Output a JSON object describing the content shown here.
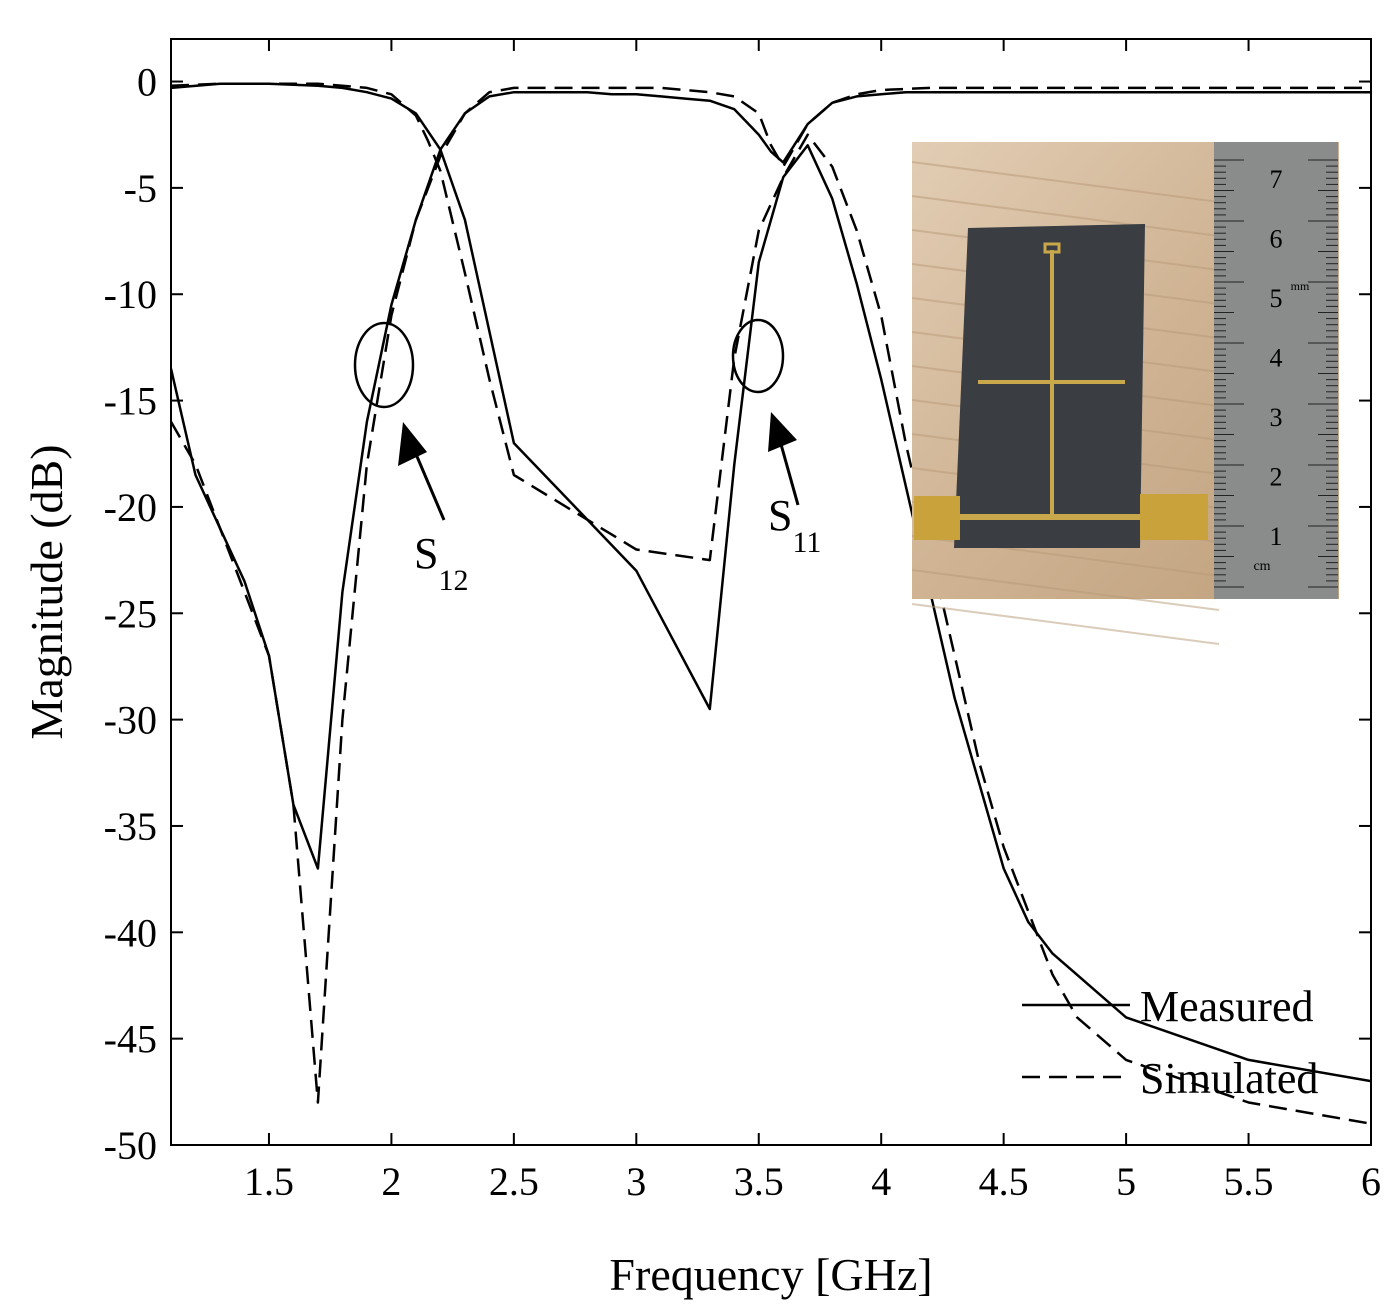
{
  "chart_data": {
    "type": "line",
    "title": "",
    "xlabel": "Frequency [GHz]",
    "ylabel": "Magnitude (dB)",
    "xlim": [
      1.1,
      6
    ],
    "ylim": [
      -50,
      2
    ],
    "xticks": [
      1.5,
      2,
      2.5,
      3,
      3.5,
      4,
      4.5,
      5,
      5.5,
      6
    ],
    "xtick_labels": [
      "1.5",
      "2",
      "2.5",
      "3",
      "3.5",
      "4",
      "4.5",
      "5",
      "5.5",
      "6"
    ],
    "yticks": [
      0,
      -5,
      -10,
      -15,
      -20,
      -25,
      -30,
      -35,
      -40,
      -45,
      -50
    ],
    "ytick_labels": [
      "0",
      "-5",
      "-10",
      "-15",
      "-20",
      "-25",
      "-30",
      "-35",
      "-40",
      "-45",
      "-50"
    ],
    "grid": false,
    "legend_position": "bottom-right",
    "legend": [
      {
        "label": "Measured",
        "style": "solid"
      },
      {
        "label": "Simulated",
        "style": "dashed"
      }
    ],
    "annotations": [
      {
        "text": "S",
        "subscript": "12"
      },
      {
        "text": "S",
        "subscript": "11"
      }
    ],
    "series": [
      {
        "parameter": "S12",
        "source": "Measured",
        "style": "solid",
        "x": [
          1.1,
          1.3,
          1.5,
          1.7,
          1.8,
          1.9,
          2.0,
          2.1,
          2.2,
          2.3,
          2.5,
          3.0,
          3.3,
          3.4,
          3.5,
          3.6,
          3.7,
          3.8,
          3.9,
          4.0,
          4.1,
          4.2,
          4.3,
          4.4,
          4.5,
          4.6,
          4.7,
          4.8,
          5.0,
          5.5,
          6.0
        ],
        "y": [
          -0.3,
          -0.1,
          -0.1,
          -0.2,
          -0.3,
          -0.5,
          -0.8,
          -1.5,
          -3.2,
          -6.5,
          -17,
          -23,
          -29.5,
          -18,
          -8.5,
          -4.5,
          -3.0,
          -5.5,
          -9.5,
          -14,
          -19,
          -24,
          -29,
          -33,
          -37,
          -39.5,
          -41,
          -42,
          -44,
          -46,
          -47
        ]
      },
      {
        "parameter": "S12",
        "source": "Simulated",
        "style": "dashed",
        "x": [
          1.1,
          1.3,
          1.5,
          1.7,
          1.8,
          1.9,
          2.0,
          2.1,
          2.15,
          2.2,
          2.3,
          2.4,
          2.5,
          3.0,
          3.3,
          3.4,
          3.5,
          3.6,
          3.7,
          3.8,
          3.9,
          4.0,
          4.1,
          4.2,
          4.3,
          4.4,
          4.5,
          4.6,
          4.7,
          4.8,
          5.0,
          5.5,
          6.0
        ],
        "y": [
          -0.2,
          -0.1,
          -0.1,
          -0.1,
          -0.2,
          -0.3,
          -0.6,
          -1.6,
          -2.8,
          -4.2,
          -9.0,
          -14,
          -18.5,
          -22,
          -22.5,
          -13,
          -7.0,
          -4.5,
          -2.5,
          -4.0,
          -7.0,
          -11,
          -17,
          -22,
          -27,
          -32,
          -36,
          -39,
          -42,
          -44,
          -46,
          -48,
          -49
        ]
      },
      {
        "parameter": "S11",
        "source": "Measured",
        "style": "solid",
        "x": [
          1.1,
          1.2,
          1.3,
          1.4,
          1.5,
          1.6,
          1.7,
          1.8,
          1.9,
          2.0,
          2.1,
          2.2,
          2.3,
          2.4,
          2.5,
          2.6,
          2.7,
          2.8,
          2.9,
          3.0,
          3.1,
          3.2,
          3.3,
          3.4,
          3.5,
          3.55,
          3.6,
          3.7,
          3.8,
          3.9,
          4.0,
          4.1,
          4.2,
          4.3,
          4.4,
          4.5,
          4.6,
          4.7,
          4.8,
          5.0,
          5.2,
          5.4,
          5.6,
          5.8,
          6.0
        ],
        "y": [
          -13.5,
          -18.5,
          -21,
          -23.5,
          -27,
          -34,
          -37,
          -24,
          -16,
          -10.5,
          -6.5,
          -3.2,
          -1.5,
          -0.7,
          -0.5,
          -0.5,
          -0.5,
          -0.5,
          -0.6,
          -0.6,
          -0.7,
          -0.8,
          -0.9,
          -1.3,
          -2.5,
          -3.3,
          -3.8,
          -2.0,
          -1.0,
          -0.7,
          -0.6,
          -0.5,
          -0.5,
          -0.5,
          -0.5,
          -0.5,
          -0.5,
          -0.5,
          -0.5,
          -0.5,
          -0.5,
          -0.5,
          -0.5,
          -0.5,
          -0.5
        ]
      },
      {
        "parameter": "S11",
        "source": "Simulated",
        "style": "dashed",
        "x": [
          1.1,
          1.2,
          1.3,
          1.4,
          1.5,
          1.6,
          1.7,
          1.8,
          1.9,
          2.0,
          2.1,
          2.2,
          2.3,
          2.4,
          2.5,
          2.6,
          2.7,
          2.8,
          2.9,
          3.0,
          3.1,
          3.2,
          3.3,
          3.4,
          3.5,
          3.55,
          3.6,
          3.7,
          3.8,
          3.9,
          4.0,
          4.2,
          4.4,
          4.6,
          4.8,
          5.0,
          5.2,
          5.4,
          5.6,
          5.8,
          6.0
        ],
        "y": [
          -16,
          -18,
          -21,
          -24,
          -27,
          -34,
          -48,
          -30,
          -18,
          -11,
          -6.5,
          -3.5,
          -1.5,
          -0.5,
          -0.3,
          -0.3,
          -0.3,
          -0.3,
          -0.3,
          -0.3,
          -0.3,
          -0.4,
          -0.5,
          -0.7,
          -1.5,
          -3.0,
          -4.0,
          -2.0,
          -1.0,
          -0.6,
          -0.4,
          -0.3,
          -0.3,
          -0.3,
          -0.3,
          -0.3,
          -0.3,
          -0.3,
          -0.3,
          -0.3,
          -0.3
        ]
      }
    ]
  },
  "inset_photo": {
    "description_free": true,
    "ruler_numbers": [
      "7",
      "6",
      "5",
      "4",
      "3",
      "2",
      "1"
    ],
    "ruler_unit": "mm",
    "ruler_cm": "cm"
  }
}
